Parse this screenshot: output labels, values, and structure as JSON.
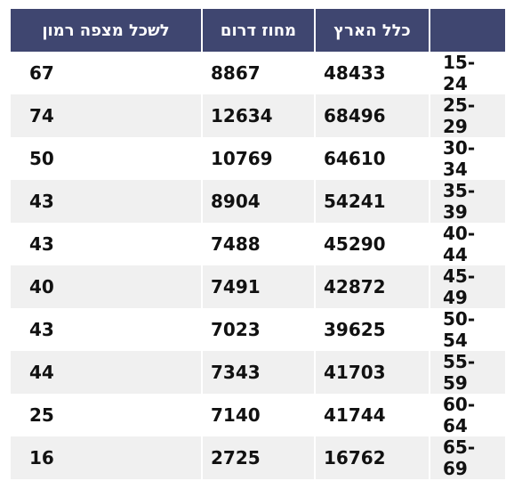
{
  "table": {
    "headers": [
      "",
      "כלל הארץ",
      "מחוז דרום",
      "לשכל מצפה רמון"
    ],
    "rows": [
      {
        "age": "15-24",
        "all": "48433",
        "south": "8867",
        "rate": "67"
      },
      {
        "age": "25-29",
        "all": "68496",
        "south": "12634",
        "rate": "74"
      },
      {
        "age": "30-34",
        "all": "64610",
        "south": "10769",
        "rate": "50"
      },
      {
        "age": "35-39",
        "all": "54241",
        "south": "8904",
        "rate": "43"
      },
      {
        "age": "40-44",
        "all": "45290",
        "south": "7488",
        "rate": "43"
      },
      {
        "age": "45-49",
        "all": "42872",
        "south": "7491",
        "rate": "40"
      },
      {
        "age": "50-54",
        "all": "39625",
        "south": "7023",
        "rate": "43"
      },
      {
        "age": "55-59",
        "all": "41703",
        "south": "7343",
        "rate": "44"
      },
      {
        "age": "60-64",
        "all": "41744",
        "south": "7140",
        "rate": "25"
      },
      {
        "age": "65-69",
        "all": "16762",
        "south": "2725",
        "rate": "16"
      }
    ]
  },
  "colors": {
    "header_bg": "#3f4670",
    "header_text": "#ffffff",
    "row_alt_bg": "#f0f0f0"
  }
}
